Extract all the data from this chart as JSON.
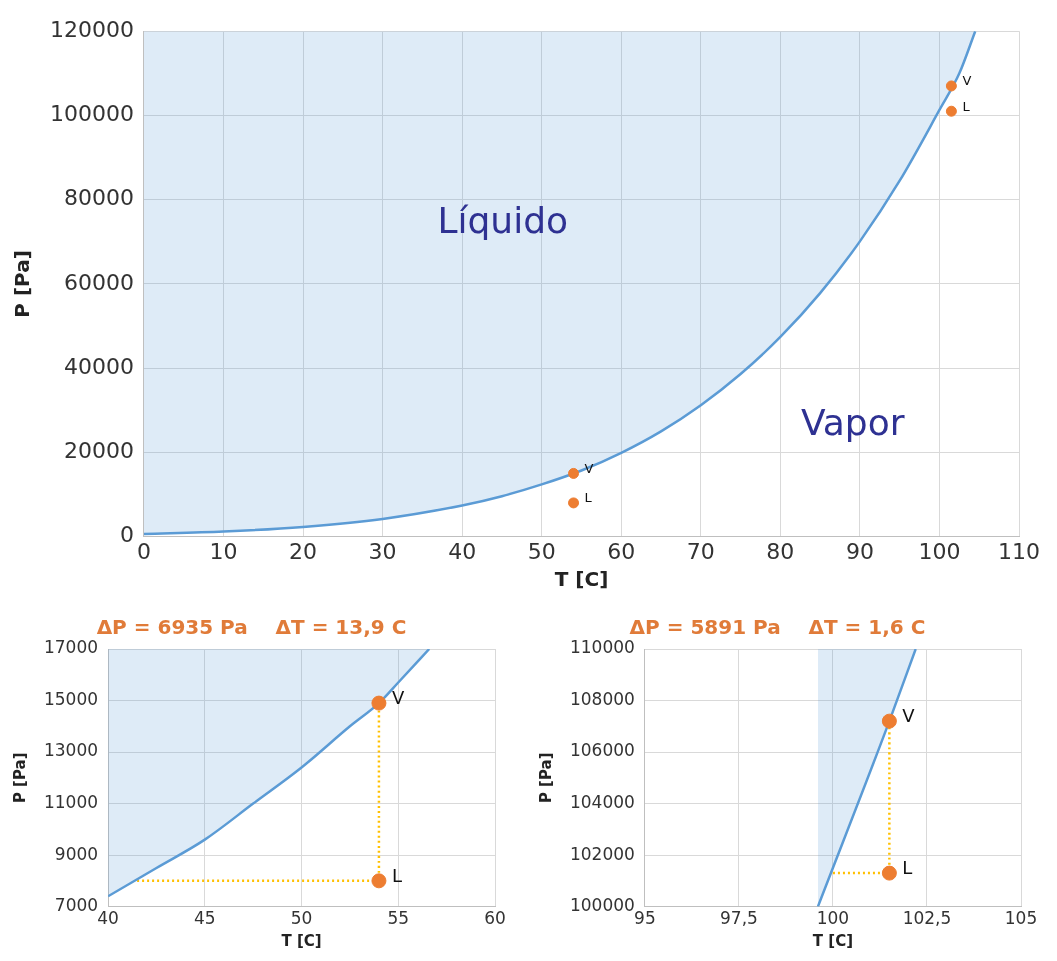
{
  "chart_data": [
    {
      "type": "line",
      "xlabel": "T [C]",
      "ylabel": "P [Pa]",
      "xlim": [
        0,
        110
      ],
      "xticks": [
        0,
        10,
        20,
        30,
        40,
        50,
        60,
        70,
        80,
        90,
        100,
        110
      ],
      "ylim": [
        0,
        120000
      ],
      "yticks": [
        0,
        20000,
        40000,
        60000,
        80000,
        100000,
        120000
      ],
      "grid": true,
      "legend": false,
      "series": [
        {
          "type": "line",
          "color": "#5b9bd5",
          "marker": "none",
          "x": [
            0,
            10,
            20,
            30,
            40,
            45,
            50,
            55,
            60,
            65,
            70,
            75,
            80,
            85,
            90,
            95,
            100,
            102.5,
            104.5
          ],
          "values": [
            600,
            1200,
            2300,
            4200,
            7400,
            9600,
            12400,
            15700,
            19900,
            25000,
            31200,
            38600,
            47400,
            57800,
            70100,
            84500,
            101300,
            110000,
            120000
          ],
          "lower": [
            600,
            1200,
            2300,
            4200,
            7400,
            9600,
            12400,
            15700,
            19900,
            25000,
            31200,
            38600,
            47400,
            57800,
            70100,
            84500,
            101300,
            110000,
            120000
          ],
          "upper": [
            120000,
            120000,
            120000,
            120000,
            120000,
            120000,
            120000,
            120000,
            120000,
            120000,
            120000,
            120000,
            120000,
            120000,
            120000,
            120000,
            120000,
            120000,
            120000
          ]
        },
        {
          "type": "scatter",
          "color": "#ed7d31",
          "marker": "circle",
          "x": [
            54,
            54,
            101.5,
            101.5
          ],
          "values": [
            15000,
            8000,
            107000,
            101000
          ],
          "value_labels": [
            "V",
            "L",
            "V",
            "L"
          ]
        }
      ],
      "annotations": [
        "Líquido",
        "Vapor"
      ]
    },
    {
      "type": "line",
      "title": "ΔP = 6935 Pa    ΔT = 13,9 C",
      "xlabel": "T [C]",
      "ylabel": "P [Pa]",
      "xlim": [
        40,
        60
      ],
      "xticks": [
        40,
        45,
        50,
        55,
        60
      ],
      "ylim": [
        7000,
        17000
      ],
      "yticks": [
        7000,
        9000,
        11000,
        13000,
        15000,
        17000
      ],
      "grid": true,
      "legend": false,
      "series": [
        {
          "type": "line",
          "color": "#5b9bd5",
          "marker": "none",
          "x": [
            40,
            42.5,
            45,
            47.5,
            50,
            52.5,
            54,
            55,
            56.6
          ],
          "values": [
            7400,
            8500,
            9600,
            11000,
            12400,
            14000,
            14900,
            15700,
            17000
          ],
          "lower": [
            7400,
            8500,
            9600,
            11000,
            12400,
            14000,
            14900,
            15700,
            17000
          ],
          "upper": [
            17000,
            17000,
            17000,
            17000,
            17000,
            17000,
            17000,
            17000,
            17000
          ]
        },
        {
          "type": "line",
          "color": "#ffc000",
          "marker": "none",
          "line_style": "dotted",
          "x": [
            41.5,
            54,
            54
          ],
          "values": [
            8000,
            8000,
            14900
          ]
        },
        {
          "type": "scatter",
          "color": "#ed7d31",
          "marker": "circle",
          "x": [
            54,
            54
          ],
          "values": [
            14900,
            8000
          ],
          "value_labels": [
            "V",
            "L"
          ]
        }
      ]
    },
    {
      "type": "line",
      "title": "ΔP = 5891 Pa    ΔT = 1,6 C",
      "xlabel": "T [C]",
      "ylabel": "P [Pa]",
      "xlim": [
        95,
        105
      ],
      "xticks": [
        95,
        {
          "value": 97.5,
          "label": "97,5"
        },
        100,
        {
          "value": 102.5,
          "label": "102,5"
        },
        105
      ],
      "ylim": [
        100000,
        110000
      ],
      "yticks": [
        100000,
        102000,
        104000,
        106000,
        108000,
        110000
      ],
      "grid": true,
      "legend": false,
      "series": [
        {
          "type": "line",
          "color": "#5b9bd5",
          "marker": "none",
          "x": [
            99.6,
            101.5,
            102.2
          ],
          "values": [
            100000,
            107200,
            110000
          ],
          "lower": [
            100000,
            107200,
            110000
          ],
          "upper": [
            110000,
            110000,
            110000
          ]
        },
        {
          "type": "line",
          "color": "#ffc000",
          "marker": "none",
          "line_style": "dotted",
          "x": [
            100,
            101.5,
            101.5
          ],
          "values": [
            101300,
            101300,
            107200
          ]
        },
        {
          "type": "scatter",
          "color": "#ed7d31",
          "marker": "circle",
          "x": [
            101.5,
            101.5
          ],
          "values": [
            107200,
            101300
          ],
          "value_labels": [
            "V",
            "L"
          ]
        }
      ]
    }
  ]
}
